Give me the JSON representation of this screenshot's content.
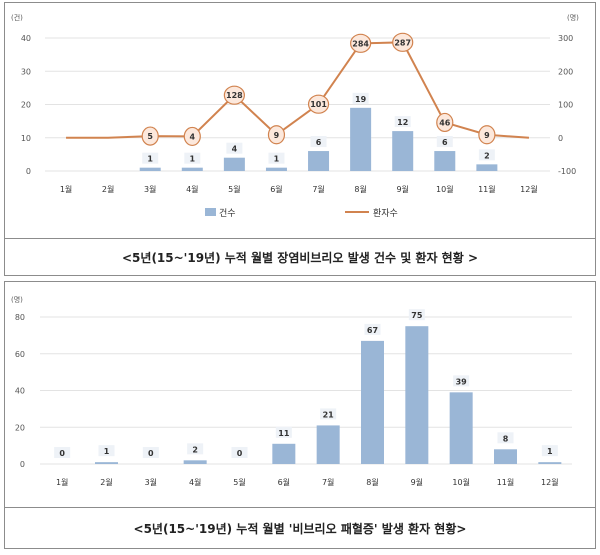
{
  "chart_data": [
    {
      "type": "bar+line",
      "y_unit_left": "(건)",
      "y_unit_right": "(명)",
      "categories": [
        "1월",
        "2월",
        "3월",
        "4월",
        "5월",
        "6월",
        "7월",
        "8월",
        "9월",
        "10월",
        "11월",
        "12월"
      ],
      "ylim_left": [
        0,
        40
      ],
      "yticks_left": [
        "0",
        "10",
        "20",
        "30",
        "40"
      ],
      "ylim_right": [
        -100,
        300
      ],
      "yticks_right": [
        "-100",
        "0",
        "100",
        "200",
        "300"
      ],
      "series": [
        {
          "name": "건수",
          "kind": "bar",
          "values": [
            0,
            0,
            1,
            1,
            4,
            1,
            6,
            19,
            12,
            6,
            2,
            0
          ],
          "labels": [
            "",
            "",
            "1",
            "1",
            "4",
            "1",
            "6",
            "19",
            "12",
            "6",
            "2",
            ""
          ]
        },
        {
          "name": "환자수",
          "kind": "line",
          "values": [
            0,
            0,
            5,
            4,
            128,
            9,
            101,
            284,
            287,
            46,
            9,
            0
          ],
          "labels": [
            "",
            "",
            "5",
            "4",
            "128",
            "9",
            "101",
            "284",
            "287",
            "46",
            "9",
            ""
          ]
        }
      ],
      "colors": {
        "bar": "#9ab6d6",
        "line": "#d1834f"
      },
      "grid": true,
      "legend": "bottom"
    },
    {
      "type": "bar",
      "y_unit_left": "(명)",
      "categories": [
        "1월",
        "2월",
        "3월",
        "4월",
        "5월",
        "6월",
        "7월",
        "8월",
        "9월",
        "10월",
        "11월",
        "12월"
      ],
      "ylim": [
        0,
        80
      ],
      "yticks": [
        "0",
        "20",
        "40",
        "60",
        "80"
      ],
      "values": [
        0,
        1,
        0,
        2,
        0,
        11,
        21,
        67,
        75,
        39,
        8,
        1
      ],
      "labels": [
        "0",
        "1",
        "0",
        "2",
        "0",
        "11",
        "21",
        "67",
        "75",
        "39",
        "8",
        "1"
      ],
      "colors": {
        "bar": "#9ab6d6"
      },
      "grid": true
    }
  ],
  "captions": {
    "chart1": "<5년(15~'19년) 누적 월별 장염비브리오 발생 건수 및 환자 현황 >",
    "chart2": "<5년(15~'19년) 누적 월별 '비브리오 패혈증' 발생 환자 현황>"
  }
}
